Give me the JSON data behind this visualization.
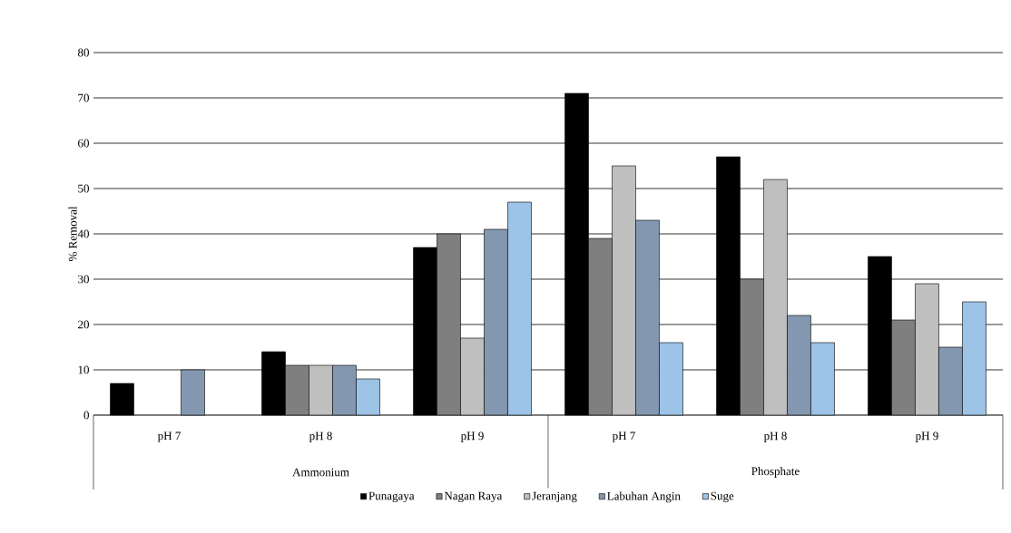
{
  "chart_data": {
    "type": "bar",
    "ylabel": "% Removal",
    "categories": [
      "pH 7",
      "pH 8",
      "pH 9",
      "pH 7",
      "pH 8",
      "pH 9"
    ],
    "annotations": [
      "Ammonium",
      "Phosphate"
    ],
    "series": [
      {
        "name": "Punagaya",
        "color": "#000000",
        "values": [
          7,
          14,
          37,
          71,
          57,
          35
        ]
      },
      {
        "name": "Nagan Raya",
        "color": "#7f7f7f",
        "values": [
          null,
          11,
          40,
          39,
          30,
          21
        ]
      },
      {
        "name": "Jeranjang",
        "color": "#bfbfbf",
        "values": [
          null,
          11,
          17,
          55,
          52,
          29
        ]
      },
      {
        "name": "Labuhan Angin",
        "color": "#8497b0",
        "values": [
          10,
          11,
          41,
          43,
          22,
          15
        ]
      },
      {
        "name": "Suge",
        "color": "#9dc3e6",
        "values": [
          null,
          8,
          47,
          16,
          16,
          25
        ]
      }
    ],
    "ylim": [
      0,
      80
    ],
    "yticks": [
      0,
      10,
      20,
      30,
      40,
      50,
      60,
      70,
      80
    ],
    "grid": "y",
    "legend": "bottom"
  }
}
